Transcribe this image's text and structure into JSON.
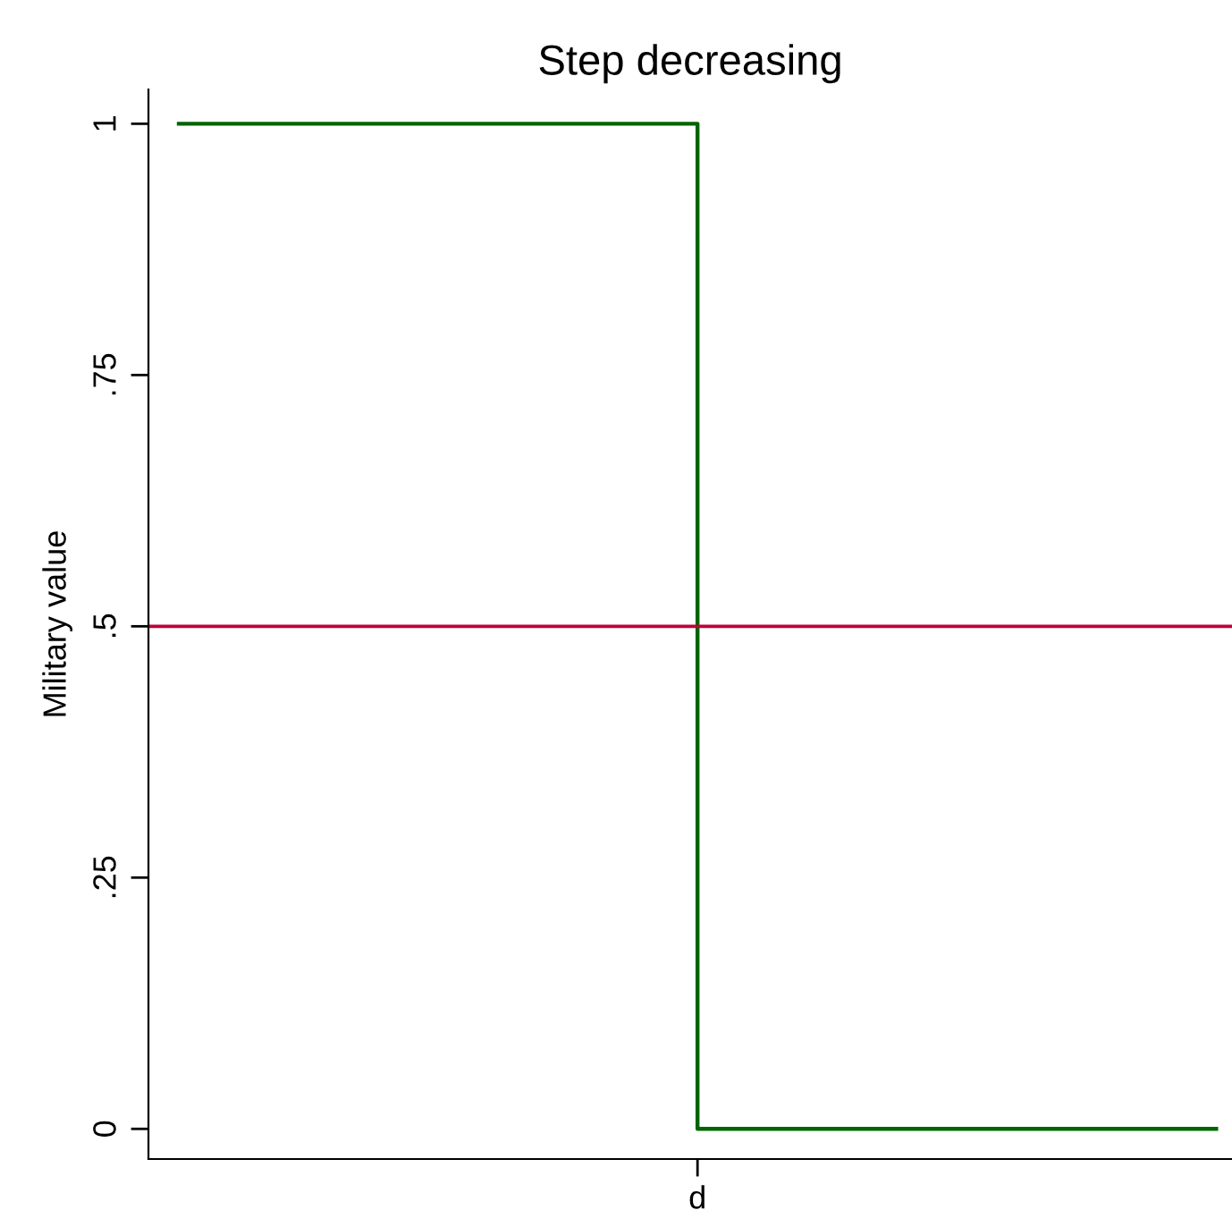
{
  "chart_data": {
    "type": "step",
    "title": "Step decreasing",
    "ylabel": "Military value",
    "categories": [
      null,
      "d",
      null
    ],
    "series": [
      {
        "color": "#006400",
        "values": [
          1,
          0,
          0
        ]
      }
    ],
    "ylim": [
      -0.03,
      1.034
    ],
    "yticks": [
      0,
      {
        "value": 0.25,
        "label": ".25"
      },
      {
        "value": 0.5,
        "label": ".5"
      },
      {
        "value": 0.75,
        "label": ".75"
      },
      1
    ],
    "ref_lines": [
      {
        "axis": "y",
        "value": 0.5,
        "color": "#c0003c"
      }
    ],
    "grid": false
  }
}
